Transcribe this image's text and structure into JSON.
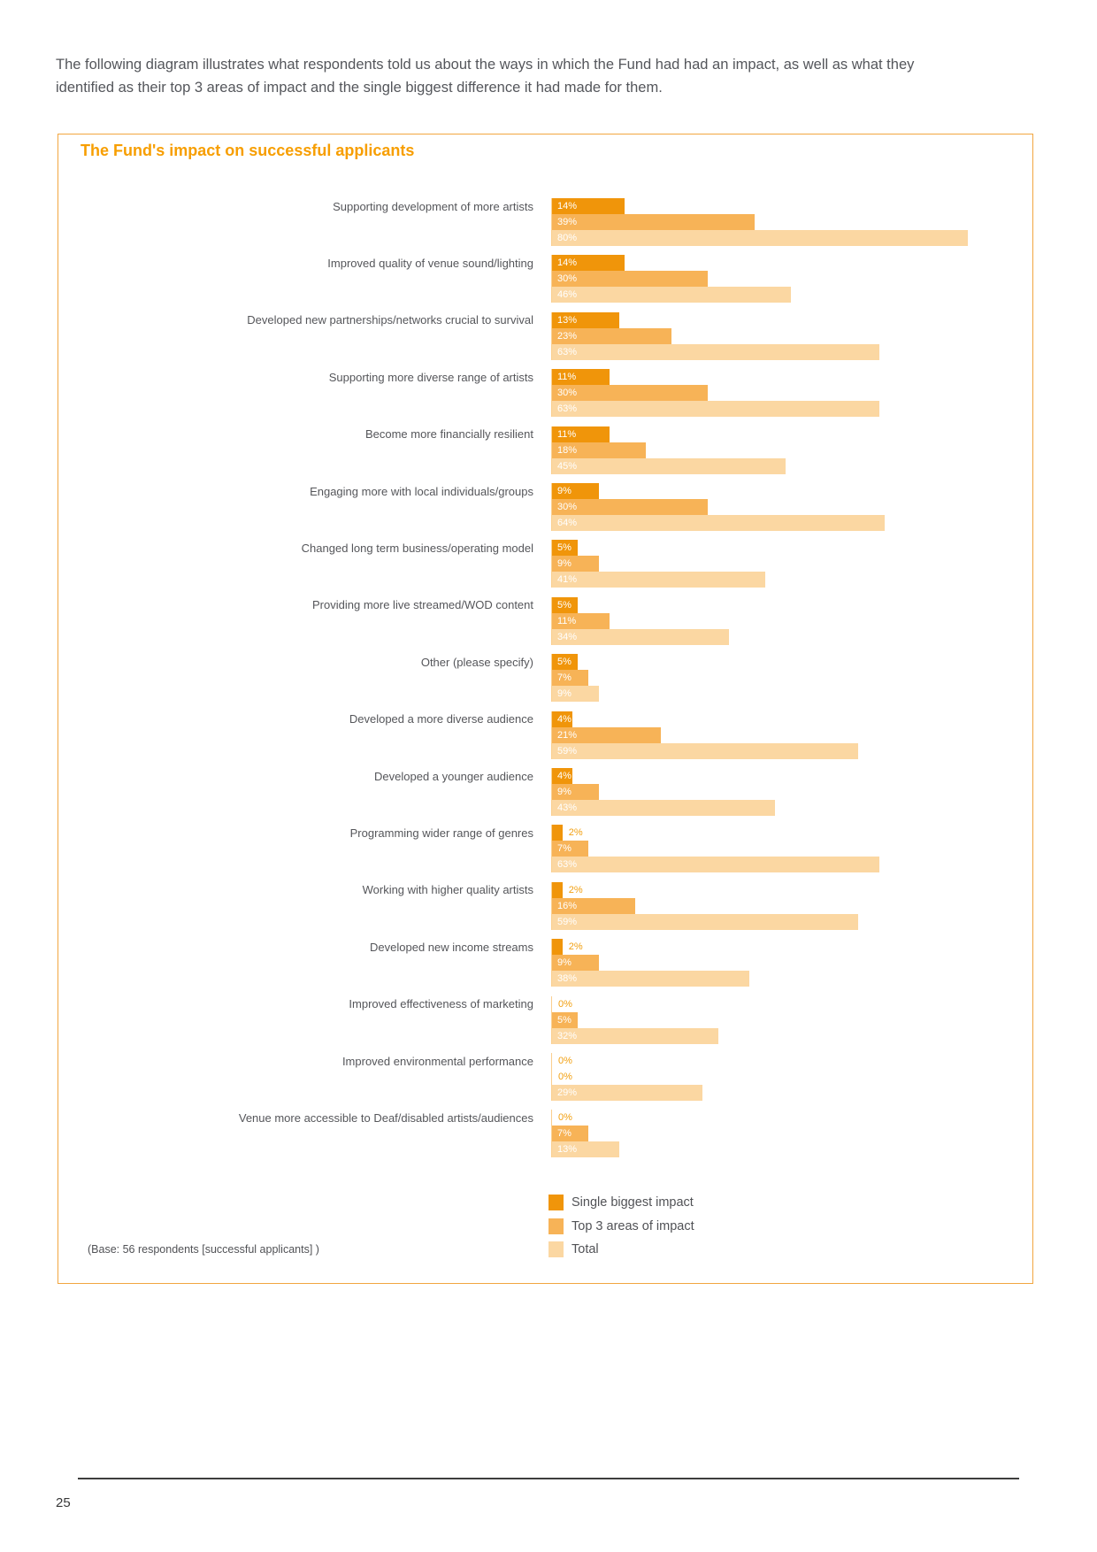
{
  "page": {
    "intro": "The following diagram illustrates what respondents told us about the ways in which the Fund had had an impact, as well as what they identified as their top 3 areas of impact and the single biggest difference it had made for them.",
    "page_number": "25"
  },
  "panel": {
    "title": "The Fund's impact on successful applicants",
    "base_note": "(Base: 56 respondents [successful applicants] )"
  },
  "colors": {
    "accent_title": "#F79E00",
    "panel_border": "#F2A640",
    "series_1": "#F0950A",
    "series_2": "#F7B357",
    "series_3": "#FBD7A2",
    "outside_value_label": "#F2A011",
    "axis_line": "#FACF8F",
    "category_text": "#55565A"
  },
  "chart_data": {
    "type": "bar",
    "orientation": "horizontal",
    "title": "The Fund's impact on successful applicants",
    "unit": "%",
    "xlim": [
      0,
      93
    ],
    "grid": false,
    "value_labels": "percent, inside bar when it fits, outside in orange when bar too short",
    "legend_position": "bottom-right",
    "categories": [
      "Supporting development of more artists",
      "Improved quality of venue sound/lighting",
      "Developed new partnerships/networks crucial to survival",
      "Supporting more diverse range of artists",
      "Become more financially resilient",
      "Engaging more with local individuals/groups",
      "Changed long term business/operating model",
      "Providing more live streamed/WOD content",
      "Other (please specify)",
      "Developed a more diverse audience",
      "Developed a younger audience",
      "Programming wider range of genres",
      "Working with higher quality artists",
      "Developed new income streams",
      "Improved effectiveness of marketing",
      "Improved environmental performance",
      "Venue more accessible to Deaf/disabled artists/audiences"
    ],
    "series": [
      {
        "name": "Single biggest impact",
        "color": "#F0950A",
        "values": [
          14,
          14,
          13,
          11,
          11,
          9,
          5,
          5,
          5,
          4,
          4,
          2,
          2,
          2,
          0,
          0,
          0
        ]
      },
      {
        "name": "Top 3 areas of impact",
        "color": "#F7B357",
        "values": [
          39,
          30,
          23,
          30,
          18,
          30,
          9,
          11,
          7,
          21,
          9,
          7,
          16,
          9,
          5,
          0,
          7
        ]
      },
      {
        "name": "Total",
        "color": "#FBD7A2",
        "values": [
          80,
          46,
          63,
          63,
          45,
          64,
          41,
          34,
          9,
          59,
          43,
          63,
          59,
          38,
          32,
          29,
          13
        ]
      }
    ]
  }
}
